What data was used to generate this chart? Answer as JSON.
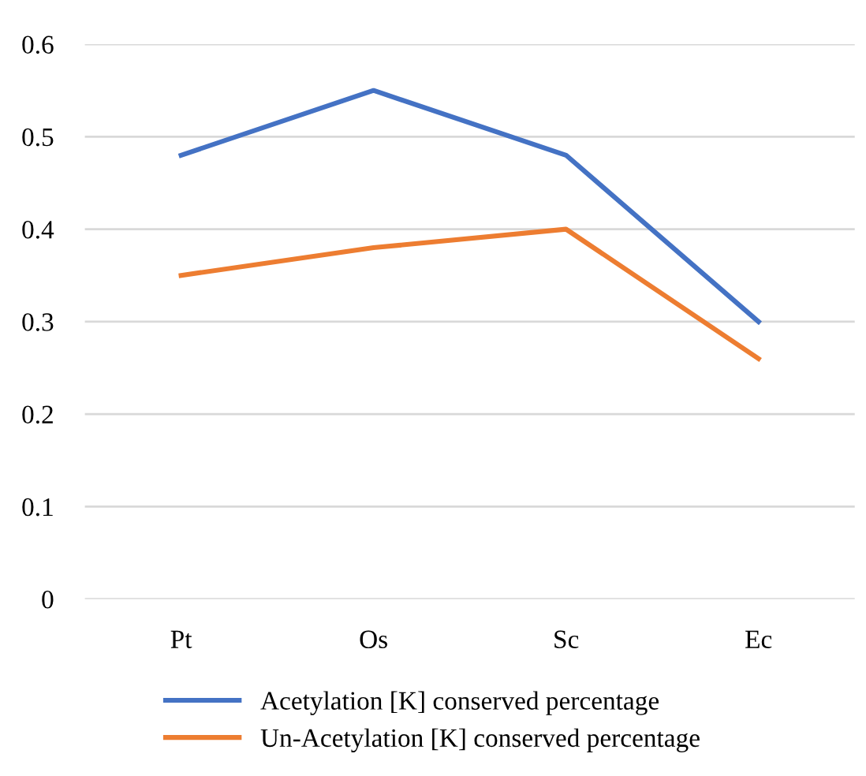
{
  "chart_data": {
    "type": "line",
    "categories": [
      "Pt",
      "Os",
      "Sc",
      "Ec"
    ],
    "series": [
      {
        "name": "Acetylation [K] conserved percentage",
        "color": "#4472c4",
        "values": [
          0.48,
          0.55,
          0.48,
          0.3
        ]
      },
      {
        "name": "Un-Acetylation [K] conserved percentage",
        "color": "#ed7d31",
        "values": [
          0.35,
          0.38,
          0.4,
          0.26
        ]
      }
    ],
    "ylim": [
      0,
      0.6
    ],
    "yticks": [
      0,
      0.1,
      0.2,
      0.3,
      0.4,
      0.5,
      0.6
    ],
    "grid": "y",
    "legend": "bottom",
    "marker": "none",
    "line_style": "solid"
  }
}
